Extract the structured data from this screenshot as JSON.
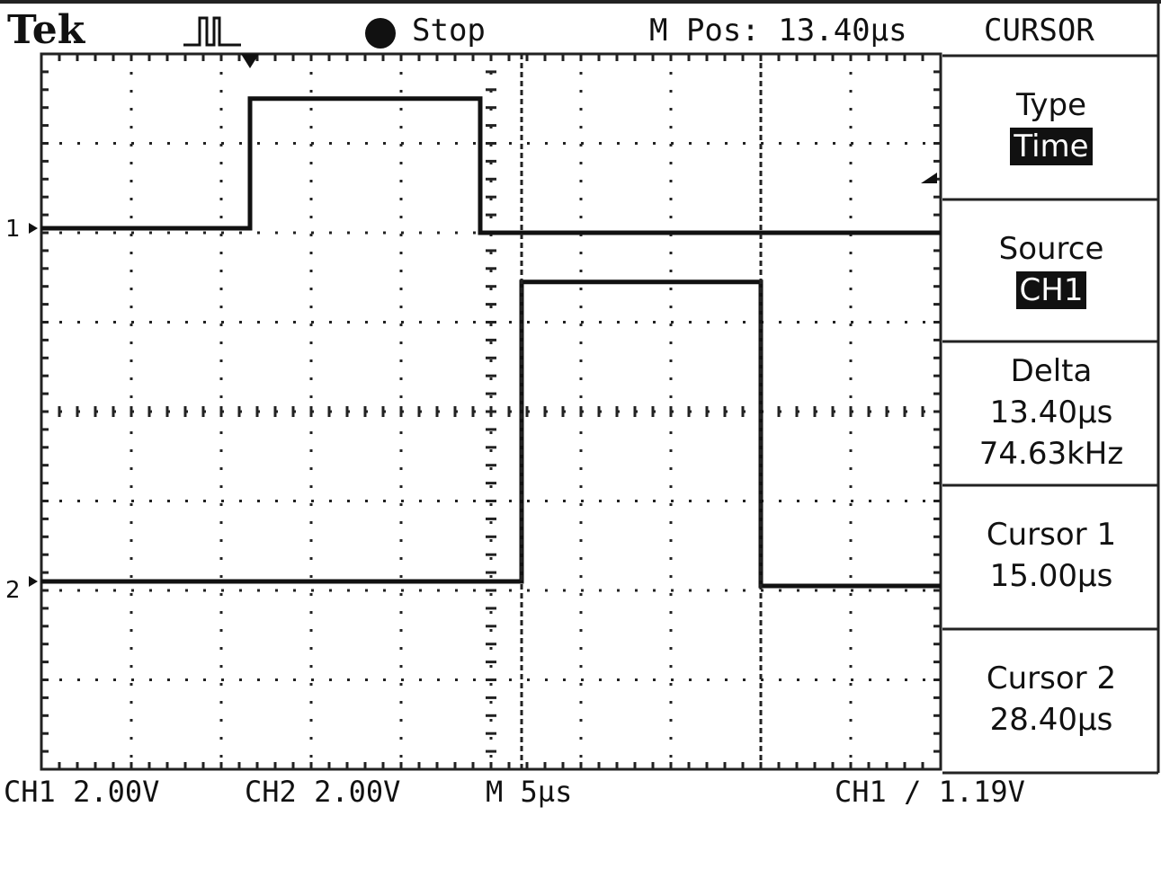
{
  "header": {
    "brand": "Tek",
    "acquisition_icon": "trigger-pulse-icon",
    "run_state": "Stop",
    "horizontal_position": "M Pos: 13.40µs",
    "menu_title": "CURSOR"
  },
  "menu": {
    "type_label": "Type",
    "type_value": "Time",
    "source_label": "Source",
    "source_value": "CH1",
    "delta_label": "Delta",
    "delta_time": "13.40µs",
    "delta_freq": "74.63kHz",
    "cursor1_label": "Cursor 1",
    "cursor1_value": "15.00µs",
    "cursor2_label": "Cursor 2",
    "cursor2_value": "28.40µs"
  },
  "footer": {
    "ch1_scale": "CH1 2.00V",
    "ch2_scale": "CH2 2.00V",
    "time_scale": "M 5µs",
    "trigger": "CH1 ∕ 1.19V"
  },
  "markers": {
    "ch1": "1",
    "ch2": "2"
  },
  "colors": {
    "trace": "#111111",
    "grid": "#222222",
    "background": "#ffffff"
  },
  "chart_data": {
    "type": "line",
    "xlim": [
      0,
      50
    ],
    "ylim": [
      -4,
      4
    ],
    "divisions": {
      "x": 10,
      "y": 8
    },
    "grid": true,
    "series": [
      {
        "name": "CH1",
        "x": [
          0,
          11.6,
          11.6,
          24.4,
          24.4,
          50
        ],
        "y": [
          2.05,
          2.05,
          3.5,
          3.5,
          2.0,
          2.0
        ]
      },
      {
        "name": "CH2",
        "x": [
          0,
          26.7,
          26.7,
          40.0,
          40.0,
          50
        ],
        "y": [
          -1.9,
          -1.9,
          1.45,
          1.45,
          -1.95,
          -1.95
        ]
      }
    ],
    "cursors_us": [
      15.0,
      28.4
    ]
  }
}
